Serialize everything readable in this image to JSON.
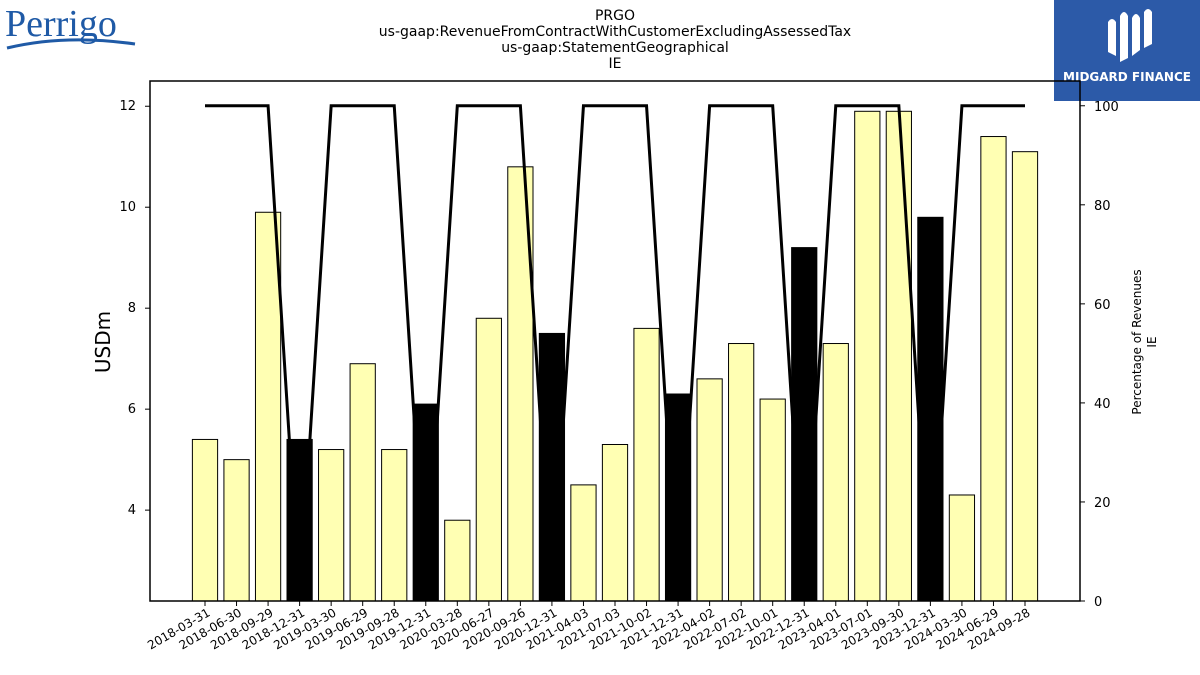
{
  "branding": {
    "left_logo_text": "Perrigo",
    "right_logo_text": "MIDGARD FINANCE",
    "left_logo_color": "#1f5aa6",
    "right_logo_bg": "#2c5aa8"
  },
  "chart_data": {
    "type": "bar",
    "title_lines": [
      "PRGO",
      "us-gaap:RevenueFromContractWithCustomerExcludingAssessedTax",
      "us-gaap:StatementGeographical",
      "IE"
    ],
    "ylabel": "USDm",
    "ylabel_right": [
      "Percentage of Revenues",
      "IE"
    ],
    "ylim": [
      2.2,
      12.5
    ],
    "ylim_right": [
      0,
      105
    ],
    "yticks": [
      4,
      6,
      8,
      10,
      12
    ],
    "yticks_right": [
      0,
      20,
      40,
      60,
      80,
      100
    ],
    "grid": false,
    "categories": [
      "2018-03-31",
      "2018-06-30",
      "2018-09-29",
      "2018-12-31",
      "2019-03-30",
      "2019-06-29",
      "2019-09-28",
      "2019-12-31",
      "2020-03-28",
      "2020-06-27",
      "2020-09-26",
      "2020-12-31",
      "2021-04-03",
      "2021-07-03",
      "2021-10-02",
      "2021-12-31",
      "2022-04-02",
      "2022-07-02",
      "2022-10-01",
      "2022-12-31",
      "2023-04-01",
      "2023-07-01",
      "2023-09-30",
      "2023-12-31",
      "2024-03-30",
      "2024-06-29",
      "2024-09-28"
    ],
    "series": [
      {
        "type": "bar",
        "values": [
          5.4,
          5.0,
          9.9,
          5.4,
          5.2,
          6.9,
          5.2,
          6.1,
          3.8,
          7.8,
          10.8,
          7.5,
          4.5,
          5.3,
          7.6,
          6.3,
          6.6,
          7.3,
          6.2,
          9.2,
          7.3,
          11.9,
          11.9,
          9.8,
          4.3,
          11.4,
          11.1
        ],
        "highlight": [
          false,
          false,
          false,
          true,
          false,
          false,
          false,
          true,
          false,
          false,
          false,
          true,
          false,
          false,
          false,
          true,
          false,
          false,
          false,
          true,
          false,
          false,
          false,
          true,
          false,
          false,
          false
        ],
        "color": "#ffffb3",
        "highlight_color": "#000000"
      },
      {
        "type": "line",
        "axis": "right",
        "values": [
          100,
          100,
          100,
          0,
          100,
          100,
          100,
          0,
          100,
          100,
          100,
          0,
          100,
          100,
          100,
          0,
          100,
          100,
          100,
          0,
          100,
          100,
          100,
          0,
          100,
          100,
          100
        ],
        "color": "#000000"
      }
    ]
  }
}
